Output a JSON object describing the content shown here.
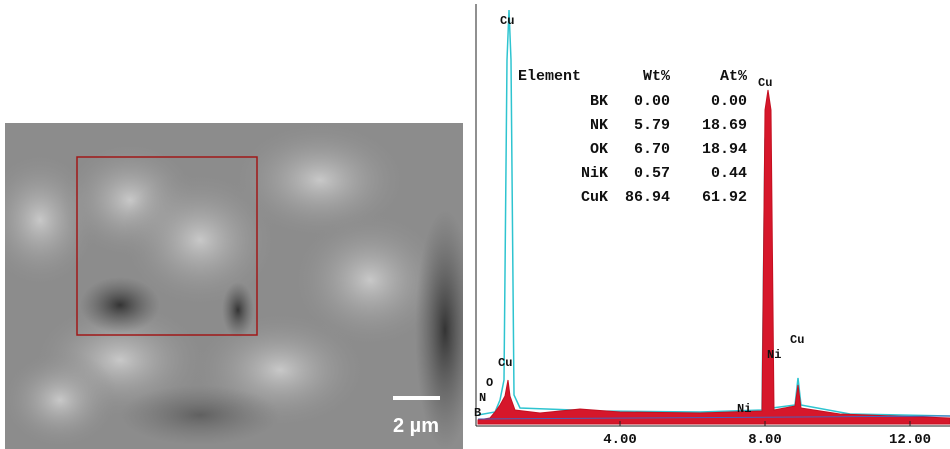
{
  "sem": {
    "scale_bar": "2 µm"
  },
  "spectrum": {
    "table": {
      "header": [
        "Element",
        "Wt%",
        "At%"
      ],
      "rows": [
        [
          "BK",
          "0.00",
          "0.00"
        ],
        [
          "NK",
          "5.79",
          "18.69"
        ],
        [
          "OK",
          "6.70",
          "18.94"
        ],
        [
          "NiK",
          "0.57",
          "0.44"
        ],
        [
          "CuK",
          "86.94",
          "61.92"
        ]
      ]
    },
    "peak_labels": [
      "Cu",
      "Cu",
      "Cu",
      "Ni",
      "Ni",
      "Cu",
      "O",
      "N",
      "B"
    ],
    "x_tick_labels": [
      "4.00",
      "8.00",
      "12.00"
    ]
  }
}
